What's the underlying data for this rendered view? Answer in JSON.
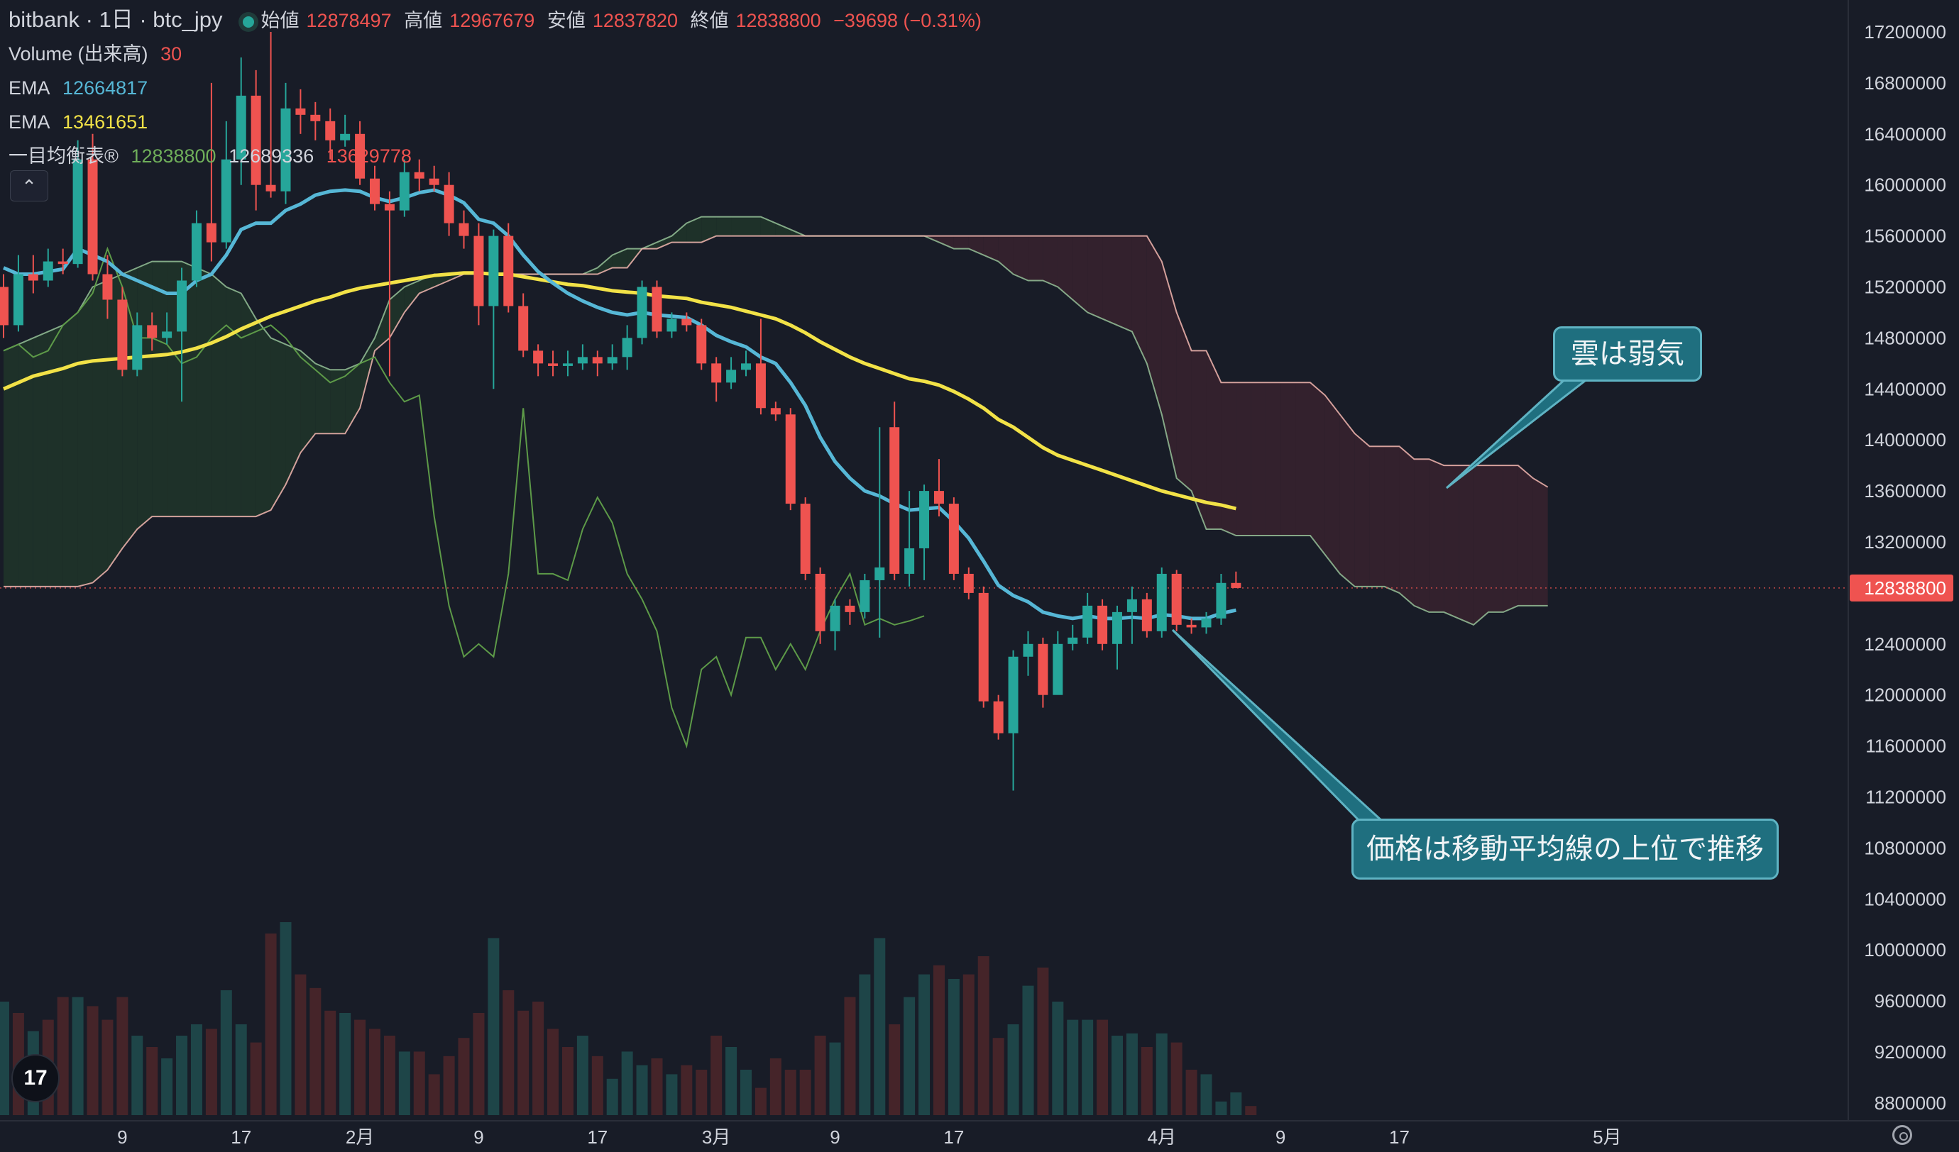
{
  "header": {
    "symbol": "bitbank · 1日 · btc_jpy",
    "open_label": "始値",
    "open": "12878497",
    "high_label": "高値",
    "high": "12967679",
    "low_label": "安値",
    "low": "12837820",
    "close_label": "終値",
    "close": "12838800",
    "change": "−39698 (−0.31%)"
  },
  "indicators": {
    "volume_label": "Volume (出来高)",
    "volume_value": "30",
    "ema1_label": "EMA",
    "ema1_value": "12664817",
    "ema2_label": "EMA",
    "ema2_value": "13461651",
    "ichimoku_label": "一目均衡表®",
    "ichimoku_v1": "12838800",
    "ichimoku_v2": "12689336",
    "ichimoku_v3": "13629778"
  },
  "annotations": {
    "cloud": "雲は弱気",
    "price": "価格は移動平均線の上位で推移"
  },
  "logo_text": "17",
  "colors": {
    "up": "#26a69a",
    "down": "#ef5350",
    "ema_short": "#56b7d6",
    "ema_long": "#f2e247",
    "chikou": "#5d9a48",
    "span_a": "#a5d6a7",
    "span_b": "#f3b7b0",
    "cloud_bull": "#1f3329",
    "cloud_bear": "#35222d",
    "price_tag": "#ef5350"
  },
  "chart_data": {
    "type": "candlestick",
    "price_axis": {
      "ticks": [
        "17200000",
        "16800000",
        "16400000",
        "16000000",
        "15600000",
        "15200000",
        "14800000",
        "14400000",
        "14000000",
        "13600000",
        "13200000",
        "12400000",
        "12000000",
        "11600000",
        "11200000",
        "10800000",
        "10400000",
        "10000000",
        "9600000",
        "9200000",
        "8800000"
      ],
      "current_price_label": "12838800",
      "range": [
        8800000,
        17200000
      ]
    },
    "time_axis": {
      "ticks": [
        "9",
        "17",
        "2月",
        "9",
        "17",
        "3月",
        "9",
        "17",
        "4月",
        "9",
        "17",
        "5月"
      ],
      "tick_day_index": [
        8,
        16,
        24,
        32,
        40,
        48,
        56,
        64,
        78,
        86,
        94,
        108
      ]
    },
    "candles": [
      [
        15200000,
        14900000,
        15300000,
        14800000
      ],
      [
        14900000,
        15300000,
        15450000,
        14850000
      ],
      [
        15300000,
        15250000,
        15450000,
        15150000
      ],
      [
        15250000,
        15400000,
        15500000,
        15200000
      ],
      [
        15400000,
        15380000,
        15500000,
        15300000
      ],
      [
        15380000,
        16200000,
        16350000,
        15350000
      ],
      [
        16200000,
        15300000,
        16400000,
        15250000
      ],
      [
        15300000,
        15100000,
        15450000,
        14950000
      ],
      [
        15100000,
        14550000,
        15200000,
        14500000
      ],
      [
        14550000,
        14900000,
        15000000,
        14500000
      ],
      [
        14900000,
        14800000,
        15000000,
        14700000
      ],
      [
        14800000,
        14850000,
        15000000,
        14750000
      ],
      [
        14850000,
        15250000,
        15350000,
        14300000
      ],
      [
        15250000,
        15700000,
        15800000,
        15200000
      ],
      [
        15700000,
        15550000,
        16800000,
        15400000
      ],
      [
        15550000,
        16200000,
        16500000,
        15500000
      ],
      [
        16200000,
        16700000,
        17000000,
        16000000
      ],
      [
        16700000,
        16000000,
        16900000,
        15800000
      ],
      [
        16000000,
        15950000,
        17200000,
        15900000
      ],
      [
        15950000,
        16600000,
        16800000,
        15850000
      ],
      [
        16600000,
        16550000,
        16750000,
        16400000
      ],
      [
        16550000,
        16500000,
        16650000,
        16350000
      ],
      [
        16500000,
        16350000,
        16600000,
        16200000
      ],
      [
        16350000,
        16400000,
        16550000,
        16300000
      ],
      [
        16400000,
        16050000,
        16500000,
        16000000
      ],
      [
        16050000,
        15850000,
        16150000,
        15800000
      ],
      [
        15850000,
        15800000,
        15950000,
        14500000
      ],
      [
        15800000,
        16100000,
        16200000,
        15750000
      ],
      [
        16100000,
        16050000,
        16200000,
        15950000
      ],
      [
        16050000,
        16000000,
        16150000,
        15950000
      ],
      [
        16000000,
        15700000,
        16100000,
        15600000
      ],
      [
        15700000,
        15600000,
        15800000,
        15500000
      ],
      [
        15600000,
        15050000,
        15700000,
        14900000
      ],
      [
        15050000,
        15600000,
        15650000,
        14400000
      ],
      [
        15600000,
        15050000,
        15700000,
        15000000
      ],
      [
        15050000,
        14700000,
        15150000,
        14650000
      ],
      [
        14700000,
        14600000,
        14750000,
        14500000
      ],
      [
        14600000,
        14580000,
        14700000,
        14500000
      ],
      [
        14580000,
        14600000,
        14700000,
        14500000
      ],
      [
        14600000,
        14650000,
        14750000,
        14550000
      ],
      [
        14650000,
        14600000,
        14700000,
        14500000
      ],
      [
        14600000,
        14650000,
        14750000,
        14550000
      ],
      [
        14650000,
        14800000,
        14900000,
        14550000
      ],
      [
        14800000,
        15200000,
        15250000,
        14750000
      ],
      [
        15200000,
        14850000,
        15250000,
        14800000
      ],
      [
        14850000,
        14950000,
        15000000,
        14800000
      ],
      [
        14950000,
        14900000,
        15000000,
        14850000
      ],
      [
        14900000,
        14600000,
        14950000,
        14550000
      ],
      [
        14600000,
        14450000,
        14650000,
        14300000
      ],
      [
        14450000,
        14550000,
        14650000,
        14400000
      ],
      [
        14550000,
        14600000,
        14700000,
        14500000
      ],
      [
        14600000,
        14250000,
        14950000,
        14200000
      ],
      [
        14250000,
        14200000,
        14300000,
        14150000
      ],
      [
        14200000,
        13500000,
        14250000,
        13450000
      ],
      [
        13500000,
        12950000,
        13550000,
        12900000
      ],
      [
        12950000,
        12500000,
        13000000,
        12400000
      ],
      [
        12500000,
        12700000,
        12750000,
        12350000
      ],
      [
        12700000,
        12650000,
        12750000,
        12550000
      ],
      [
        12650000,
        12900000,
        12950000,
        12600000
      ],
      [
        12900000,
        13000000,
        14100000,
        12450000
      ],
      [
        14100000,
        12950000,
        14300000,
        12900000
      ],
      [
        12950000,
        13150000,
        13600000,
        12850000
      ],
      [
        13150000,
        13600000,
        13650000,
        12900000
      ],
      [
        13600000,
        13500000,
        13850000,
        13400000
      ],
      [
        13500000,
        12950000,
        13550000,
        12900000
      ],
      [
        12950000,
        12800000,
        13000000,
        12750000
      ],
      [
        12800000,
        11950000,
        12850000,
        11900000
      ],
      [
        11950000,
        11700000,
        12000000,
        11650000
      ],
      [
        11700000,
        12300000,
        12350000,
        11250000
      ],
      [
        12300000,
        12400000,
        12500000,
        12150000
      ],
      [
        12400000,
        12000000,
        12450000,
        11900000
      ],
      [
        12000000,
        12400000,
        12500000,
        12300000
      ],
      [
        12400000,
        12450000,
        12550000,
        12350000
      ],
      [
        12450000,
        12700000,
        12800000,
        12400000
      ],
      [
        12700000,
        12400000,
        12750000,
        12350000
      ],
      [
        12400000,
        12650000,
        12700000,
        12200000
      ],
      [
        12650000,
        12750000,
        12850000,
        12400000
      ],
      [
        12750000,
        12500000,
        12800000,
        12450000
      ],
      [
        12500000,
        12950000,
        13000000,
        12450000
      ],
      [
        12950000,
        12550000,
        12980000,
        12500000
      ],
      [
        12550000,
        12530000,
        12600000,
        12480000
      ],
      [
        12530000,
        12600000,
        12650000,
        12480000
      ],
      [
        12600000,
        12878497,
        12950000,
        12550000
      ],
      [
        12878497,
        12838800,
        12967679,
        12837820
      ]
    ],
    "volume": [
      50,
      45,
      37,
      42,
      52,
      52,
      48,
      42,
      52,
      35,
      30,
      25,
      35,
      40,
      38,
      55,
      40,
      32,
      80,
      85,
      62,
      56,
      46,
      45,
      42,
      38,
      35,
      28,
      28,
      18,
      26,
      34,
      45,
      78,
      55,
      46,
      50,
      38,
      30,
      35,
      26,
      16,
      28,
      22,
      25,
      18,
      22,
      20,
      35,
      30,
      20,
      12,
      25,
      20,
      20,
      35,
      32,
      52,
      62,
      78,
      40,
      52,
      62,
      66,
      60,
      62,
      70,
      34,
      40,
      57,
      65,
      50,
      42,
      42,
      42,
      35,
      36,
      30,
      36,
      32,
      20,
      18,
      6,
      10,
      4
    ],
    "volume_colors": [
      "up",
      "down",
      "up",
      "down",
      "down",
      "up",
      "down",
      "down",
      "down",
      "up",
      "down",
      "up",
      "up",
      "up",
      "down",
      "up",
      "up",
      "down",
      "down",
      "up",
      "down",
      "down",
      "down",
      "up",
      "down",
      "down",
      "down",
      "up",
      "down",
      "down",
      "down",
      "down",
      "down",
      "up",
      "down",
      "down",
      "down",
      "down",
      "down",
      "up",
      "down",
      "up",
      "up",
      "up",
      "down",
      "up",
      "down",
      "down",
      "down",
      "up",
      "up",
      "down",
      "down",
      "down",
      "down",
      "down",
      "up",
      "down",
      "up",
      "up",
      "down",
      "up",
      "up",
      "down",
      "up",
      "down",
      "down",
      "down",
      "up",
      "up",
      "down",
      "up",
      "up",
      "up",
      "down",
      "up",
      "up",
      "down",
      "up",
      "down",
      "down",
      "up",
      "up",
      "up",
      "down"
    ],
    "ema_short": [
      15350000,
      15300000,
      15300000,
      15320000,
      15340000,
      15500000,
      15450000,
      15400000,
      15300000,
      15250000,
      15200000,
      15150000,
      15150000,
      15250000,
      15300000,
      15450000,
      15650000,
      15700000,
      15700000,
      15800000,
      15850000,
      15920000,
      15950000,
      15960000,
      15950000,
      15900000,
      15870000,
      15900000,
      15940000,
      15960000,
      15920000,
      15860000,
      15730000,
      15700000,
      15600000,
      15450000,
      15320000,
      15230000,
      15150000,
      15090000,
      15040000,
      15000000,
      14980000,
      15000000,
      14980000,
      14970000,
      14960000,
      14900000,
      14820000,
      14770000,
      14730000,
      14650000,
      14600000,
      14450000,
      14270000,
      14020000,
      13830000,
      13700000,
      13600000,
      13560000,
      13500000,
      13450000,
      13460000,
      13470000,
      13360000,
      13230000,
      13050000,
      12860000,
      12780000,
      12730000,
      12650000,
      12620000,
      12600000,
      12620000,
      12600000,
      12600000,
      12610000,
      12600000,
      12630000,
      12620000,
      12600000,
      12600000,
      12640000,
      12664817
    ],
    "ema_long": [
      14400000,
      14450000,
      14500000,
      14530000,
      14560000,
      14600000,
      14620000,
      14630000,
      14640000,
      14650000,
      14660000,
      14670000,
      14690000,
      14720000,
      14760000,
      14810000,
      14870000,
      14920000,
      14970000,
      15010000,
      15050000,
      15090000,
      15120000,
      15160000,
      15190000,
      15210000,
      15230000,
      15250000,
      15270000,
      15290000,
      15300000,
      15310000,
      15310000,
      15300000,
      15300000,
      15280000,
      15260000,
      15240000,
      15220000,
      15210000,
      15190000,
      15170000,
      15160000,
      15150000,
      15130000,
      15120000,
      15110000,
      15080000,
      15060000,
      15040000,
      15010000,
      14980000,
      14950000,
      14900000,
      14840000,
      14770000,
      14710000,
      14650000,
      14600000,
      14560000,
      14520000,
      14480000,
      14460000,
      14430000,
      14380000,
      14320000,
      14250000,
      14160000,
      14100000,
      14020000,
      13940000,
      13880000,
      13840000,
      13800000,
      13760000,
      13720000,
      13680000,
      13640000,
      13600000,
      13570000,
      13540000,
      13510000,
      13490000,
      13461651
    ],
    "span_a": [
      14700000,
      14750000,
      14800000,
      14850000,
      14900000,
      15000000,
      15200000,
      15250000,
      15300000,
      15350000,
      15400000,
      15400000,
      15400000,
      15350000,
      15300000,
      15200000,
      15150000,
      14950000,
      14800000,
      14750000,
      14700000,
      14600000,
      14550000,
      14550000,
      14600000,
      14800000,
      15100000,
      15200000,
      15250000,
      15300000,
      15300000,
      15300000,
      15300000,
      15300000,
      15300000,
      15300000,
      15300000,
      15300000,
      15300000,
      15300000,
      15350000,
      15450000,
      15500000,
      15500000,
      15550000,
      15600000,
      15700000,
      15750000,
      15750000,
      15750000,
      15750000,
      15750000,
      15700000,
      15650000,
      15600000,
      15600000,
      15600000,
      15600000,
      15600000,
      15600000,
      15600000,
      15600000,
      15600000,
      15550000,
      15500000,
      15500000,
      15450000,
      15400000,
      15300000,
      15250000,
      15250000,
      15200000,
      15100000,
      15000000,
      14950000,
      14900000,
      14850000,
      14600000,
      14200000,
      13700000,
      13600000,
      13300000,
      13300000,
      13250000,
      13250000,
      13250000,
      13250000,
      13250000,
      13250000,
      13100000,
      12950000,
      12850000,
      12850000,
      12850000,
      12800000,
      12700000,
      12650000,
      12650000,
      12600000,
      12550000,
      12650000,
      12650000,
      12700000,
      12700000,
      12700000
    ],
    "span_b": [
      12850000,
      12850000,
      12850000,
      12850000,
      12850000,
      12850000,
      12880000,
      12980000,
      13150000,
      13300000,
      13400000,
      13400000,
      13400000,
      13400000,
      13400000,
      13400000,
      13400000,
      13400000,
      13450000,
      13650000,
      13900000,
      14050000,
      14050000,
      14050000,
      14250000,
      14700000,
      14800000,
      15000000,
      15150000,
      15200000,
      15250000,
      15300000,
      15300000,
      15300000,
      15300000,
      15300000,
      15300000,
      15300000,
      15300000,
      15300000,
      15300000,
      15350000,
      15350000,
      15500000,
      15500000,
      15550000,
      15550000,
      15550000,
      15600000,
      15600000,
      15600000,
      15600000,
      15600000,
      15600000,
      15600000,
      15600000,
      15600000,
      15600000,
      15600000,
      15600000,
      15600000,
      15600000,
      15600000,
      15600000,
      15600000,
      15600000,
      15600000,
      15600000,
      15600000,
      15600000,
      15600000,
      15600000,
      15600000,
      15600000,
      15600000,
      15600000,
      15600000,
      15600000,
      15400000,
      15000000,
      14700000,
      14700000,
      14450000,
      14450000,
      14450000,
      14450000,
      14450000,
      14450000,
      14450000,
      14350000,
      14200000,
      14050000,
      13950000,
      13950000,
      13950000,
      13850000,
      13850000,
      13800000,
      13800000,
      13800000,
      13800000,
      13800000,
      13800000,
      13700000,
      13629778
    ],
    "chikou": [
      14700000,
      14750000,
      14650000,
      14700000,
      14900000,
      15000000,
      15150000,
      15500000,
      15200000,
      14800000,
      14800000,
      14750000,
      14600000,
      14650000,
      14800000,
      14900000,
      14800000,
      14850000,
      14900000,
      14800000,
      14650000,
      14550000,
      14450000,
      14500000,
      14600000,
      14650000,
      14450000,
      14300000,
      14350000,
      13400000,
      12700000,
      12300000,
      12400000,
      12300000,
      12950000,
      14250000,
      12950000,
      12950000,
      12900000,
      13300000,
      13550000,
      13350000,
      12950000,
      12750000,
      12500000,
      11900000,
      11600000,
      12200000,
      12300000,
      12000000,
      12450000,
      12450000,
      12200000,
      12400000,
      12200000,
      12500000,
      12750000,
      12950000,
      12550000,
      12600000,
      12550000,
      12580000,
      12620000
    ],
    "chikou_start_index": 0
  }
}
